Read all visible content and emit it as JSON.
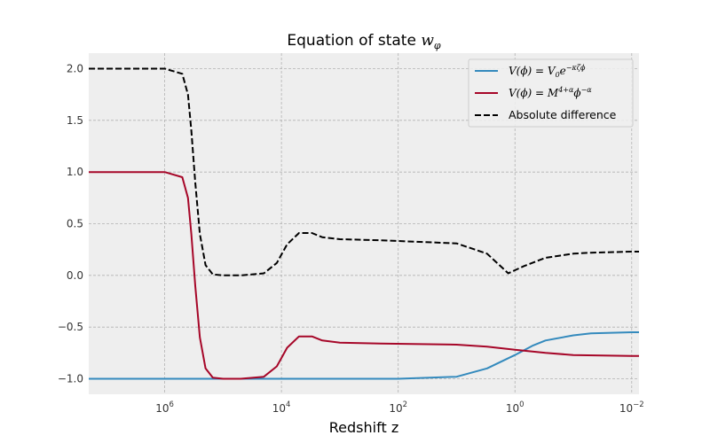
{
  "chart_data": {
    "type": "line",
    "title": "Equation of state",
    "title_math": "w",
    "title_math_sub": "φ",
    "xlabel": "Redshift z",
    "ylabel": "",
    "xscale": "log",
    "xaxis_reversed": true,
    "xlim": [
      20000000,
      0.0075
    ],
    "ylim": [
      -1.15,
      2.15
    ],
    "grid": true,
    "legend_position": "top-right",
    "x_ticks": [
      {
        "base": "10",
        "exp": "6",
        "value": 1000000
      },
      {
        "base": "10",
        "exp": "4",
        "value": 10000
      },
      {
        "base": "10",
        "exp": "2",
        "value": 100
      },
      {
        "base": "10",
        "exp": "0",
        "value": 1
      },
      {
        "base": "10",
        "exp": "−2",
        "value": 0.01
      }
    ],
    "y_ticks": [
      {
        "label": "2.0",
        "value": 2.0
      },
      {
        "label": "1.5",
        "value": 1.5
      },
      {
        "label": "1.0",
        "value": 1.0
      },
      {
        "label": "0.5",
        "value": 0.5
      },
      {
        "label": "0.0",
        "value": 0.0
      },
      {
        "label": "−0.5",
        "value": -0.5
      },
      {
        "label": "−1.0",
        "value": -1.0
      }
    ],
    "series": [
      {
        "name": "V(ϕ) = V₀e^(−κζϕ)",
        "legend_math": {
          "base": "V(ϕ) = V",
          "sub": "0",
          "mid": "e",
          "sup": "−κζϕ"
        },
        "color": "#348abd",
        "dash": "solid",
        "x": [
          20000000,
          1000000,
          10000,
          100,
          10,
          3,
          1,
          0.5,
          0.3,
          0.1,
          0.05,
          0.01,
          0.0075
        ],
        "y": [
          -1.0,
          -1.0,
          -1.0,
          -1.0,
          -0.98,
          -0.9,
          -0.77,
          -0.68,
          -0.63,
          -0.58,
          -0.56,
          -0.55,
          -0.55
        ]
      },
      {
        "name": "V(ϕ) = M^(4+α)ϕ^(−α)",
        "legend_math": {
          "base": "V(ϕ) = M",
          "sup": "4+α",
          "mid": "ϕ",
          "sup2": "−α"
        },
        "color": "#a60628",
        "dash": "solid",
        "x": [
          20000000,
          1000000,
          500000,
          400000,
          350000,
          300000,
          250000,
          200000,
          150000,
          100000,
          50000,
          20000,
          12000,
          8000,
          5000,
          3000,
          2000,
          1000,
          200,
          10,
          3,
          1,
          0.3,
          0.1,
          0.01,
          0.0075
        ],
        "y": [
          1.0,
          1.0,
          0.95,
          0.75,
          0.4,
          -0.1,
          -0.6,
          -0.9,
          -0.99,
          -1.0,
          -1.0,
          -0.98,
          -0.88,
          -0.7,
          -0.59,
          -0.59,
          -0.63,
          -0.65,
          -0.66,
          -0.67,
          -0.69,
          -0.72,
          -0.75,
          -0.77,
          -0.78,
          -0.78
        ]
      },
      {
        "name": "Absolute difference",
        "color": "#000000",
        "dash": "dashed",
        "x": [
          20000000,
          1000000,
          500000,
          400000,
          350000,
          300000,
          250000,
          200000,
          150000,
          100000,
          50000,
          20000,
          12000,
          8000,
          5000,
          3000,
          2000,
          1000,
          200,
          10,
          3,
          1.3,
          1,
          0.7,
          0.3,
          0.1,
          0.05,
          0.01,
          0.0075
        ],
        "y": [
          2.0,
          2.0,
          1.95,
          1.75,
          1.4,
          0.9,
          0.4,
          0.1,
          0.01,
          0.0,
          0.0,
          0.02,
          0.12,
          0.3,
          0.41,
          0.41,
          0.37,
          0.35,
          0.34,
          0.31,
          0.21,
          0.02,
          0.05,
          0.09,
          0.17,
          0.21,
          0.22,
          0.23,
          0.23
        ]
      }
    ]
  }
}
